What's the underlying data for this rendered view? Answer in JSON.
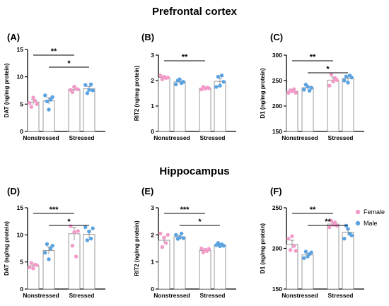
{
  "titles": {
    "top": "Prefrontal cortex",
    "bottom": "Hippocampus"
  },
  "legend": {
    "items": [
      {
        "label": "Female",
        "color": "#f29bc9"
      },
      {
        "label": "Male",
        "color": "#5aa3e0"
      }
    ]
  },
  "colors": {
    "female": "#f29bc9",
    "male": "#5aa3e0",
    "bar_edge": "#808080",
    "axis": "#000000"
  },
  "chart_data": [
    {
      "panel": "(A)",
      "type": "bar",
      "ylabel": "DAT (ng/mg protein)",
      "ylim": [
        0,
        15
      ],
      "yticks": [
        0,
        5,
        10,
        15
      ],
      "categories": [
        "Nonstressed",
        "Stressed"
      ],
      "series": [
        {
          "name": "Female",
          "values": [
            5.4,
            7.7
          ],
          "sem": [
            0.5,
            0.3
          ],
          "points": [
            [
              5.2,
              4.5,
              6.2,
              5.6,
              5.0
            ],
            [
              7.6,
              7.2,
              8.2,
              7.8,
              7.7
            ]
          ]
        },
        {
          "name": "Male",
          "values": [
            5.6,
            7.8
          ],
          "sem": [
            0.6,
            0.4
          ],
          "points": [
            [
              6.6,
              5.5,
              4.0,
              5.8,
              6.3
            ],
            [
              8.5,
              7.0,
              7.6,
              8.6,
              7.5
            ]
          ]
        }
      ],
      "significance": [
        {
          "label": "**",
          "from": [
            0,
            0
          ],
          "to": [
            1,
            0
          ]
        },
        {
          "label": "*",
          "from": [
            0,
            1
          ],
          "to": [
            1,
            1
          ]
        }
      ]
    },
    {
      "panel": "(B)",
      "type": "bar",
      "ylabel": "RIT2 (ng/mg protein)",
      "ylim": [
        0,
        3
      ],
      "yticks": [
        0,
        1,
        2,
        3
      ],
      "categories": [
        "Nonstressed",
        "Stressed"
      ],
      "series": [
        {
          "name": "Female",
          "values": [
            2.12,
            1.7
          ],
          "sem": [
            0.05,
            0.04
          ],
          "points": [
            [
              2.2,
              2.05,
              2.15,
              2.1,
              2.12
            ],
            [
              1.65,
              1.75,
              1.68,
              1.72,
              1.7
            ]
          ]
        },
        {
          "name": "Male",
          "values": [
            1.95,
            1.97
          ],
          "sem": [
            0.06,
            0.12
          ],
          "points": [
            [
              1.85,
              2.0,
              2.05,
              1.9,
              1.95
            ],
            [
              1.75,
              2.15,
              1.8,
              2.2,
              1.95
            ]
          ]
        }
      ],
      "significance": [
        {
          "label": "**",
          "from": [
            0,
            0
          ],
          "to": [
            1,
            0
          ]
        }
      ]
    },
    {
      "panel": "(C)",
      "type": "bar",
      "ylabel": "D1 (ng/mg protein)",
      "ylim": [
        150,
        300
      ],
      "yticks": [
        150,
        200,
        250,
        300
      ],
      "categories": [
        "Nonstressed",
        "Stressed"
      ],
      "series": [
        {
          "name": "Female",
          "values": [
            229,
            251
          ],
          "sem": [
            3,
            6
          ],
          "points": [
            [
              226,
              231,
              229,
              233,
              226
            ],
            [
              240,
              262,
              248,
              255,
              251
            ]
          ]
        },
        {
          "name": "Male",
          "values": [
            236,
            254
          ],
          "sem": [
            3,
            4
          ],
          "points": [
            [
              232,
              242,
              238,
              230,
              236
            ],
            [
              250,
              258,
              246,
              260,
              256
            ]
          ]
        }
      ],
      "significance": [
        {
          "label": "**",
          "from": [
            0,
            0
          ],
          "to": [
            1,
            0
          ]
        },
        {
          "label": "*",
          "from": [
            0,
            1
          ],
          "to": [
            1,
            1
          ]
        }
      ]
    },
    {
      "panel": "(D)",
      "type": "bar",
      "ylabel": "DAT (ng/mg protein)",
      "ylim": [
        0,
        15
      ],
      "yticks": [
        0,
        5,
        10,
        15
      ],
      "categories": [
        "Nonstressed",
        "Stressed"
      ],
      "series": [
        {
          "name": "Female",
          "values": [
            4.3,
            10.2
          ],
          "sem": [
            0.3,
            1.2
          ],
          "points": [
            [
              4.0,
              4.8,
              3.8,
              4.5,
              4.4
            ],
            [
              11.6,
              8.0,
              10.5,
              6.0,
              10.7
            ]
          ]
        },
        {
          "name": "Male",
          "values": [
            7.1,
            10.1
          ],
          "sem": [
            0.7,
            0.7
          ],
          "points": [
            [
              6.7,
              8.3,
              5.5,
              7.5,
              8.0
            ],
            [
              11.4,
              9.0,
              10.6,
              9.3,
              11.2
            ]
          ]
        }
      ],
      "significance": [
        {
          "label": "***",
          "from": [
            0,
            0
          ],
          "to": [
            1,
            0
          ]
        },
        {
          "label": "*",
          "from": [
            0,
            1
          ],
          "to": [
            1,
            1
          ]
        }
      ]
    },
    {
      "panel": "(E)",
      "type": "bar",
      "ylabel": "RIT2 (ng/mg protein)",
      "ylim": [
        0,
        3
      ],
      "yticks": [
        0,
        1,
        2,
        3
      ],
      "categories": [
        "Nonstressed",
        "Stressed"
      ],
      "series": [
        {
          "name": "Female",
          "values": [
            1.8,
            1.42
          ],
          "sem": [
            0.1,
            0.04
          ],
          "points": [
            [
              2.05,
              1.55,
              1.9,
              1.7,
              2.0
            ],
            [
              1.5,
              1.35,
              1.45,
              1.4,
              1.48
            ]
          ]
        },
        {
          "name": "Male",
          "values": [
            1.93,
            1.63
          ],
          "sem": [
            0.05,
            0.03
          ],
          "points": [
            [
              2.0,
              1.85,
              1.9,
              2.05,
              1.88
            ],
            [
              1.62,
              1.7,
              1.58,
              1.65,
              1.6
            ]
          ]
        }
      ],
      "significance": [
        {
          "label": "***",
          "from": [
            0,
            0
          ],
          "to": [
            1,
            0
          ]
        },
        {
          "label": "*",
          "from": [
            0,
            1
          ],
          "to": [
            1,
            1
          ]
        }
      ]
    },
    {
      "panel": "(F)",
      "type": "bar",
      "ylabel": "D1 (ng/mg protein)",
      "ylim": [
        150,
        250
      ],
      "yticks": [
        150,
        200,
        250
      ],
      "categories": [
        "Nonstressed",
        "Stressed"
      ],
      "series": [
        {
          "name": "Female",
          "values": [
            205,
            230
          ],
          "sem": [
            5,
            2
          ],
          "points": [
            [
              212,
              198,
              215,
              203,
              197
            ],
            [
              226,
              234,
              229,
              232,
              228
            ]
          ]
        },
        {
          "name": "Male",
          "values": [
            192,
            220
          ],
          "sem": [
            2,
            4
          ],
          "points": [
            [
              188,
              196,
              190,
              193,
              195
            ],
            [
              212,
              228,
              224,
              218,
              216
            ]
          ]
        }
      ],
      "significance": [
        {
          "label": "**",
          "from": [
            0,
            0
          ],
          "to": [
            1,
            0
          ]
        },
        {
          "label": "**",
          "from": [
            0,
            1
          ],
          "to": [
            1,
            1
          ]
        }
      ]
    }
  ]
}
